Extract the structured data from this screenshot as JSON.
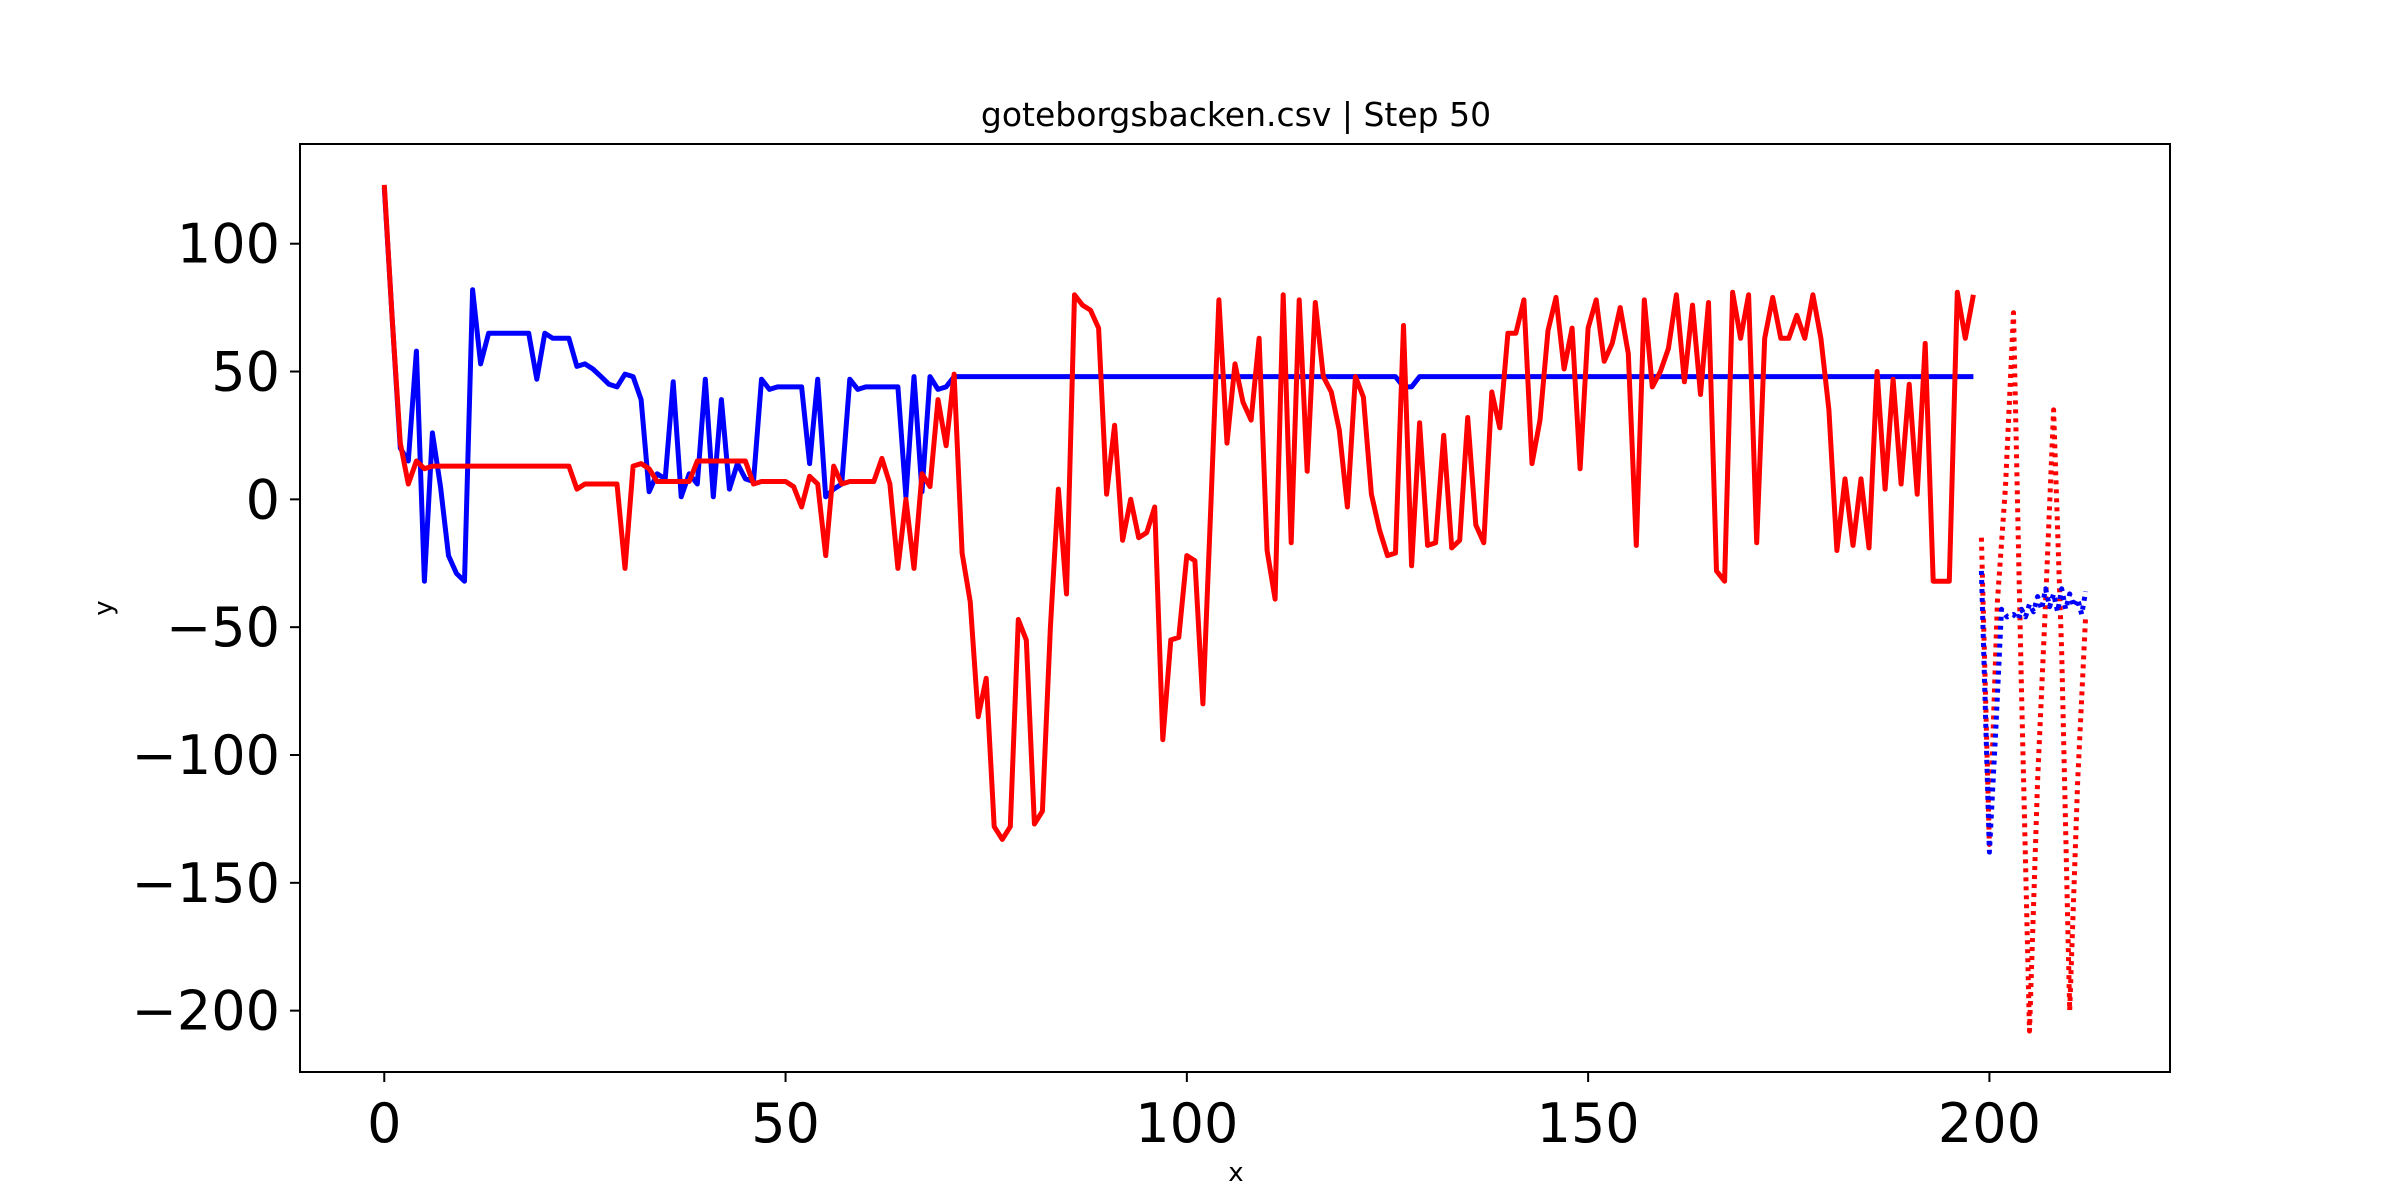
{
  "chart_data": {
    "type": "line",
    "title": "goteborgsbacken.csv | Step 50",
    "xlabel": "x",
    "ylabel": "y",
    "xlim": [
      -10.5,
      222.5
    ],
    "ylim": [
      -224,
      139
    ],
    "xticks": [
      0,
      50,
      100,
      150,
      200
    ],
    "yticks": [
      100,
      50,
      0,
      -50,
      -100,
      -150,
      -200
    ],
    "xtick_labels": [
      "0",
      "50",
      "100",
      "150",
      "200"
    ],
    "ytick_labels": [
      "100",
      "50",
      "0",
      "−50",
      "−100",
      "−150",
      "−200"
    ],
    "grid": false,
    "series": [
      {
        "color": "#0000ff",
        "style": "solid",
        "points": [
          [
            0,
            122
          ],
          [
            1,
            70
          ],
          [
            2,
            20
          ],
          [
            3,
            15
          ],
          [
            4,
            58
          ],
          [
            5,
            -32
          ],
          [
            6,
            26
          ],
          [
            7,
            5
          ],
          [
            8,
            -22
          ],
          [
            9,
            -29
          ],
          [
            10,
            -32
          ],
          [
            11,
            82
          ],
          [
            12,
            53
          ],
          [
            13,
            65
          ],
          [
            14,
            65
          ],
          [
            15,
            65
          ],
          [
            16,
            65
          ],
          [
            17,
            65
          ],
          [
            18,
            65
          ],
          [
            19,
            47
          ],
          [
            20,
            65
          ],
          [
            21,
            63
          ],
          [
            22,
            63
          ],
          [
            23,
            63
          ],
          [
            24,
            52
          ],
          [
            25,
            53
          ],
          [
            26,
            51
          ],
          [
            27,
            48
          ],
          [
            28,
            45
          ],
          [
            29,
            44
          ],
          [
            30,
            49
          ],
          [
            31,
            48
          ],
          [
            32,
            39
          ],
          [
            33,
            3
          ],
          [
            34,
            10
          ],
          [
            35,
            8
          ],
          [
            36,
            46
          ],
          [
            37,
            1
          ],
          [
            38,
            10
          ],
          [
            39,
            6
          ],
          [
            40,
            47
          ],
          [
            41,
            1
          ],
          [
            42,
            39
          ],
          [
            43,
            4
          ],
          [
            44,
            14
          ],
          [
            45,
            8
          ],
          [
            46,
            7
          ],
          [
            47,
            47
          ],
          [
            48,
            43
          ],
          [
            49,
            44
          ],
          [
            50,
            44
          ],
          [
            51,
            44
          ],
          [
            52,
            44
          ],
          [
            53,
            14
          ],
          [
            54,
            47
          ],
          [
            55,
            1
          ],
          [
            56,
            4
          ],
          [
            57,
            6
          ],
          [
            58,
            47
          ],
          [
            59,
            43
          ],
          [
            60,
            44
          ],
          [
            61,
            44
          ],
          [
            62,
            44
          ],
          [
            63,
            44
          ],
          [
            64,
            44
          ],
          [
            65,
            1
          ],
          [
            66,
            48
          ],
          [
            67,
            3
          ],
          [
            68,
            48
          ],
          [
            69,
            43
          ],
          [
            70,
            44
          ],
          [
            71,
            48
          ],
          [
            80,
            48
          ],
          [
            90,
            48
          ],
          [
            100,
            48
          ],
          [
            110,
            48
          ],
          [
            120,
            48
          ],
          [
            126,
            48
          ],
          [
            127,
            44
          ],
          [
            128,
            44
          ],
          [
            129,
            48
          ],
          [
            140,
            48
          ],
          [
            150,
            48
          ],
          [
            160,
            48
          ],
          [
            170,
            48
          ],
          [
            180,
            48
          ],
          [
            190,
            48
          ],
          [
            198,
            48
          ]
        ]
      },
      {
        "color": "#ff0000",
        "style": "solid",
        "points": [
          [
            0,
            123
          ],
          [
            1,
            70
          ],
          [
            2,
            22
          ],
          [
            3,
            6
          ],
          [
            4,
            15
          ],
          [
            5,
            12
          ],
          [
            6,
            13
          ],
          [
            7,
            13
          ],
          [
            8,
            13
          ],
          [
            9,
            13
          ],
          [
            10,
            13
          ],
          [
            12,
            13
          ],
          [
            15,
            13
          ],
          [
            18,
            13
          ],
          [
            20,
            13
          ],
          [
            22,
            13
          ],
          [
            23,
            13
          ],
          [
            24,
            4
          ],
          [
            25,
            6
          ],
          [
            26,
            6
          ],
          [
            27,
            6
          ],
          [
            28,
            6
          ],
          [
            29,
            6
          ],
          [
            30,
            -27
          ],
          [
            31,
            13
          ],
          [
            32,
            14
          ],
          [
            33,
            12
          ],
          [
            34,
            7
          ],
          [
            35,
            7
          ],
          [
            36,
            7
          ],
          [
            37,
            7
          ],
          [
            38,
            7
          ],
          [
            39,
            15
          ],
          [
            40,
            15
          ],
          [
            41,
            15
          ],
          [
            42,
            15
          ],
          [
            43,
            15
          ],
          [
            44,
            15
          ],
          [
            45,
            15
          ],
          [
            46,
            6
          ],
          [
            47,
            7
          ],
          [
            48,
            7
          ],
          [
            49,
            7
          ],
          [
            50,
            7
          ],
          [
            51,
            5
          ],
          [
            52,
            -3
          ],
          [
            53,
            9
          ],
          [
            54,
            6
          ],
          [
            55,
            -22
          ],
          [
            56,
            13
          ],
          [
            57,
            6
          ],
          [
            58,
            7
          ],
          [
            59,
            7
          ],
          [
            60,
            7
          ],
          [
            61,
            7
          ],
          [
            62,
            16
          ],
          [
            63,
            6
          ],
          [
            64,
            -27
          ],
          [
            65,
            0
          ],
          [
            66,
            -27
          ],
          [
            67,
            10
          ],
          [
            68,
            5
          ],
          [
            69,
            39
          ],
          [
            70,
            21
          ],
          [
            71,
            49
          ],
          [
            72,
            -21
          ],
          [
            73,
            -40
          ],
          [
            74,
            -85
          ],
          [
            75,
            -70
          ],
          [
            76,
            -128
          ],
          [
            77,
            -133
          ],
          [
            78,
            -128
          ],
          [
            79,
            -47
          ],
          [
            80,
            -55
          ],
          [
            81,
            -127
          ],
          [
            82,
            -122
          ],
          [
            83,
            -50
          ],
          [
            84,
            4
          ],
          [
            85,
            -37
          ],
          [
            86,
            80
          ],
          [
            87,
            76
          ],
          [
            88,
            74
          ],
          [
            89,
            67
          ],
          [
            90,
            2
          ],
          [
            91,
            29
          ],
          [
            92,
            -16
          ],
          [
            93,
            0
          ],
          [
            94,
            -15
          ],
          [
            95,
            -13
          ],
          [
            96,
            -3
          ],
          [
            97,
            -94
          ],
          [
            98,
            -55
          ],
          [
            99,
            -54
          ],
          [
            100,
            -22
          ],
          [
            101,
            -24
          ],
          [
            102,
            -80
          ],
          [
            103,
            -2
          ],
          [
            104,
            78
          ],
          [
            105,
            22
          ],
          [
            106,
            53
          ],
          [
            107,
            38
          ],
          [
            108,
            31
          ],
          [
            109,
            63
          ],
          [
            110,
            -20
          ],
          [
            111,
            -39
          ],
          [
            112,
            80
          ],
          [
            113,
            -17
          ],
          [
            114,
            78
          ],
          [
            115,
            11
          ],
          [
            116,
            77
          ],
          [
            117,
            48
          ],
          [
            118,
            42
          ],
          [
            119,
            27
          ],
          [
            120,
            -3
          ],
          [
            121,
            48
          ],
          [
            122,
            40
          ],
          [
            123,
            2
          ],
          [
            124,
            -12
          ],
          [
            125,
            -22
          ],
          [
            126,
            -21
          ],
          [
            127,
            68
          ],
          [
            128,
            -26
          ],
          [
            129,
            30
          ],
          [
            130,
            -18
          ],
          [
            131,
            -17
          ],
          [
            132,
            25
          ],
          [
            133,
            -19
          ],
          [
            134,
            -16
          ],
          [
            135,
            32
          ],
          [
            136,
            -10
          ],
          [
            137,
            -17
          ],
          [
            138,
            42
          ],
          [
            139,
            28
          ],
          [
            140,
            65
          ],
          [
            141,
            65
          ],
          [
            142,
            78
          ],
          [
            143,
            14
          ],
          [
            144,
            31
          ],
          [
            145,
            66
          ],
          [
            146,
            79
          ],
          [
            147,
            51
          ],
          [
            148,
            67
          ],
          [
            149,
            12
          ],
          [
            150,
            67
          ],
          [
            151,
            78
          ],
          [
            152,
            54
          ],
          [
            153,
            61
          ],
          [
            154,
            75
          ],
          [
            155,
            57
          ],
          [
            156,
            -18
          ],
          [
            157,
            78
          ],
          [
            158,
            44
          ],
          [
            159,
            50
          ],
          [
            160,
            59
          ],
          [
            161,
            80
          ],
          [
            162,
            46
          ],
          [
            163,
            76
          ],
          [
            164,
            41
          ],
          [
            165,
            77
          ],
          [
            166,
            -28
          ],
          [
            167,
            -32
          ],
          [
            168,
            81
          ],
          [
            169,
            63
          ],
          [
            170,
            80
          ],
          [
            171,
            -17
          ],
          [
            172,
            63
          ],
          [
            173,
            79
          ],
          [
            174,
            63
          ],
          [
            175,
            63
          ],
          [
            176,
            72
          ],
          [
            177,
            63
          ],
          [
            178,
            80
          ],
          [
            179,
            63
          ],
          [
            180,
            35
          ],
          [
            181,
            -20
          ],
          [
            182,
            8
          ],
          [
            183,
            -18
          ],
          [
            184,
            8
          ],
          [
            185,
            -19
          ],
          [
            186,
            50
          ],
          [
            187,
            4
          ],
          [
            188,
            47
          ],
          [
            189,
            6
          ],
          [
            190,
            45
          ],
          [
            191,
            2
          ],
          [
            192,
            61
          ],
          [
            193,
            -32
          ],
          [
            194,
            -32
          ],
          [
            195,
            -32
          ],
          [
            196,
            81
          ],
          [
            197,
            63
          ],
          [
            198,
            80
          ]
        ]
      },
      {
        "color": "#ff0000",
        "style": "dotted",
        "points": [
          [
            199,
            -15
          ],
          [
            200,
            -135
          ],
          [
            201,
            -40
          ],
          [
            202,
            5
          ],
          [
            203,
            73
          ],
          [
            204,
            -75
          ],
          [
            205,
            -208
          ],
          [
            206,
            -110
          ],
          [
            207,
            -40
          ],
          [
            208,
            35
          ],
          [
            209,
            -60
          ],
          [
            210,
            -200
          ],
          [
            211,
            -110
          ],
          [
            212,
            -45
          ]
        ]
      },
      {
        "color": "#0000ff",
        "style": "dotted",
        "points": [
          [
            199,
            -28
          ],
          [
            200,
            -138
          ],
          [
            200.8,
            -90
          ],
          [
            201.5,
            -43
          ],
          [
            202.2,
            -46
          ],
          [
            203,
            -45
          ],
          [
            203.6,
            -47
          ],
          [
            204,
            -43
          ],
          [
            204.5,
            -46
          ],
          [
            205,
            -41
          ],
          [
            205.5,
            -44
          ],
          [
            206,
            -38
          ],
          [
            206.5,
            -43
          ],
          [
            207,
            -35
          ],
          [
            207.5,
            -42
          ],
          [
            208,
            -37
          ],
          [
            208.5,
            -44
          ],
          [
            209,
            -35
          ],
          [
            209.5,
            -43
          ],
          [
            210,
            -37
          ],
          [
            210.5,
            -42
          ],
          [
            211,
            -39
          ],
          [
            211.5,
            -45
          ],
          [
            212,
            -36
          ]
        ]
      }
    ]
  }
}
